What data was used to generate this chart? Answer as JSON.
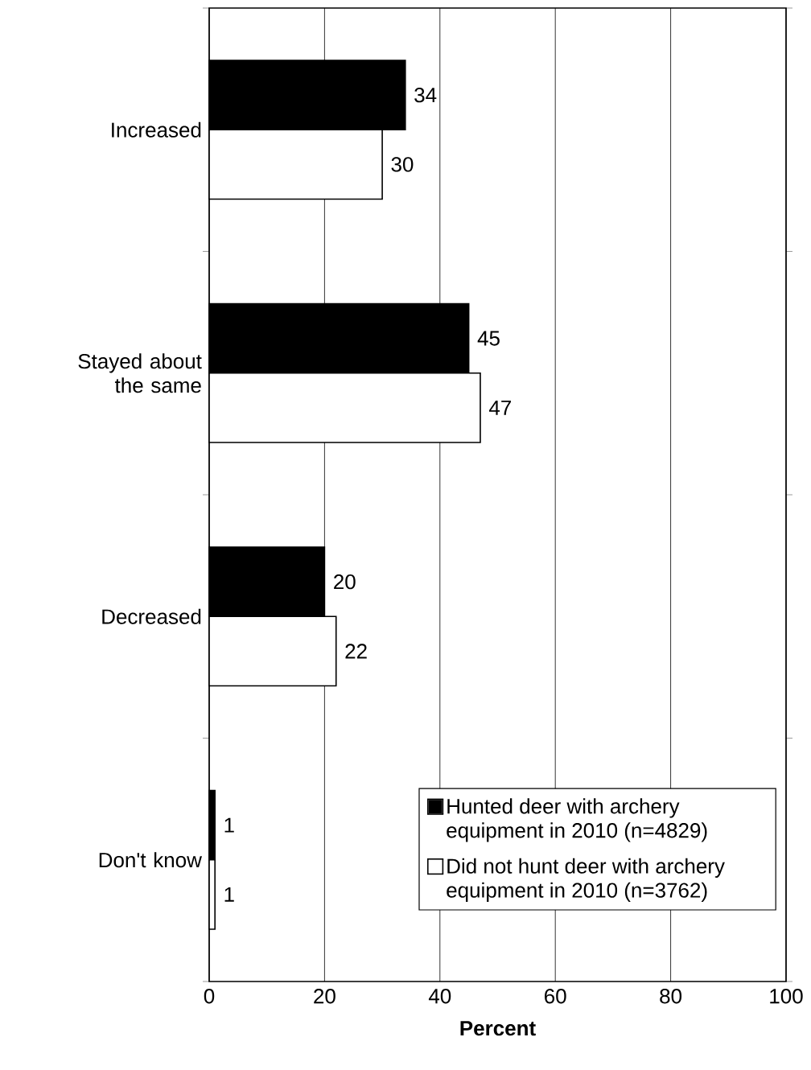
{
  "chart_data": {
    "type": "bar",
    "orientation": "horizontal",
    "xlabel": "Percent",
    "categories": [
      "Increased",
      "Stayed about the same",
      "Decreased",
      "Don't know"
    ],
    "series": [
      {
        "name": "Hunted deer with archery equipment in 2010 (n=4829)",
        "color": "#000000",
        "values": [
          34,
          45,
          20,
          1
        ]
      },
      {
        "name": "Did not hunt deer with archery equipment in 2010 (n=3762)",
        "color": "#ffffff",
        "values": [
          30,
          47,
          22,
          1
        ]
      }
    ],
    "xlim": [
      0,
      100
    ],
    "xticks": [
      0,
      20,
      40,
      60,
      80,
      100
    ],
    "grid": "x",
    "legend": "bottom right",
    "data_labels": true
  }
}
